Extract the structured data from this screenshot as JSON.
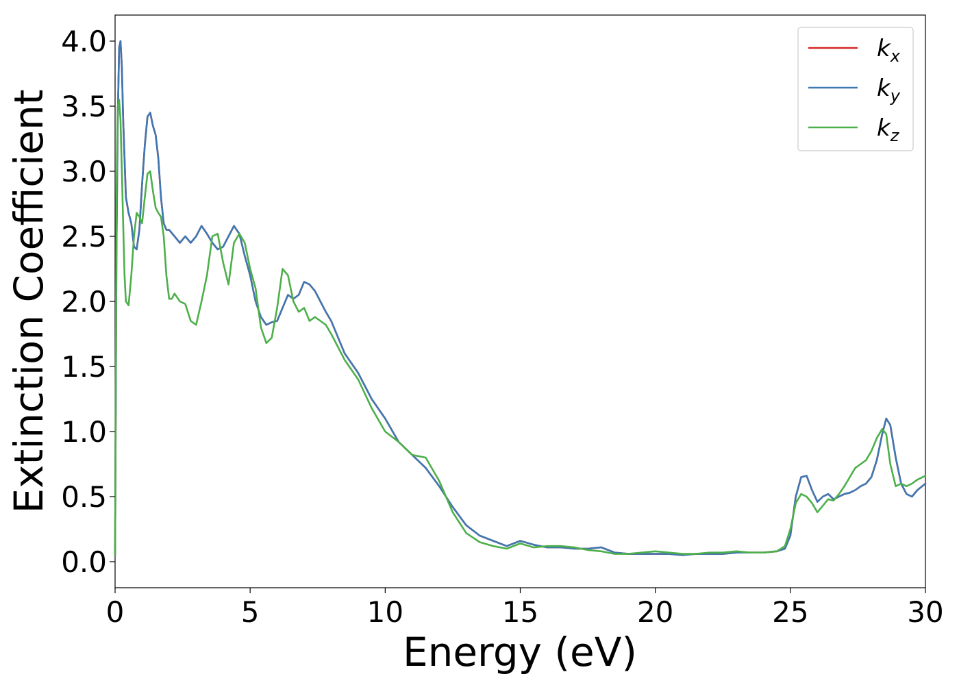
{
  "chart_data": {
    "type": "line",
    "title": "",
    "xlabel": "Energy (eV)",
    "ylabel": "Extinction Coefficient",
    "xlim": [
      0,
      30
    ],
    "ylim": [
      -0.2,
      4.2
    ],
    "xticks": [
      0,
      5,
      10,
      15,
      20,
      25,
      30
    ],
    "xtick_labels": [
      "0",
      "5",
      "10",
      "15",
      "20",
      "25",
      "30"
    ],
    "yticks": [
      0.0,
      0.5,
      1.0,
      1.5,
      2.0,
      2.5,
      3.0,
      3.5,
      4.0
    ],
    "ytick_labels": [
      "0.0",
      "0.5",
      "1.0",
      "1.5",
      "2.0",
      "2.5",
      "3.0",
      "3.5",
      "4.0"
    ],
    "grid": false,
    "legend_position": "top-right",
    "series": [
      {
        "name": "k",
        "subscript": "x",
        "color": "#d62728",
        "x": [
          0,
          0.05,
          0.1,
          0.15,
          0.2,
          0.25,
          0.3,
          0.4,
          0.5,
          0.6,
          0.7,
          0.8,
          0.9,
          1.0,
          1.1,
          1.2,
          1.3,
          1.4,
          1.5,
          1.6,
          1.7,
          1.8,
          1.9,
          2.0,
          2.2,
          2.4,
          2.6,
          2.8,
          3.0,
          3.2,
          3.4,
          3.6,
          3.8,
          4.0,
          4.2,
          4.4,
          4.6,
          4.8,
          5.0,
          5.2,
          5.4,
          5.6,
          5.8,
          6.0,
          6.2,
          6.4,
          6.6,
          6.8,
          7.0,
          7.2,
          7.4,
          7.6,
          7.8,
          8.0,
          8.5,
          9.0,
          9.5,
          10.0,
          10.5,
          11.0,
          11.5,
          12.0,
          12.5,
          13.0,
          13.5,
          14.0,
          14.5,
          15.0,
          15.5,
          16.0,
          16.5,
          17.0,
          17.5,
          18.0,
          18.5,
          19.0,
          19.5,
          20.0,
          20.5,
          21.0,
          21.5,
          22.0,
          22.5,
          23.0,
          23.5,
          24.0,
          24.5,
          24.8,
          25.0,
          25.2,
          25.4,
          25.6,
          25.8,
          26.0,
          26.2,
          26.4,
          26.6,
          26.8,
          27.0,
          27.2,
          27.4,
          27.6,
          27.8,
          28.0,
          28.2,
          28.4,
          28.55,
          28.7,
          28.9,
          29.1,
          29.3,
          29.5,
          29.7,
          30.0
        ],
        "y": [
          0.05,
          2.4,
          3.4,
          3.95,
          4.0,
          3.8,
          3.4,
          2.8,
          2.68,
          2.6,
          2.42,
          2.4,
          2.55,
          2.9,
          3.2,
          3.42,
          3.45,
          3.35,
          3.28,
          3.1,
          2.8,
          2.6,
          2.55,
          2.55,
          2.5,
          2.45,
          2.5,
          2.45,
          2.5,
          2.58,
          2.52,
          2.45,
          2.4,
          2.42,
          2.5,
          2.58,
          2.52,
          2.35,
          2.2,
          2.0,
          1.88,
          1.82,
          1.84,
          1.85,
          1.95,
          2.05,
          2.02,
          2.05,
          2.15,
          2.13,
          2.08,
          2.0,
          1.92,
          1.85,
          1.6,
          1.45,
          1.25,
          1.1,
          0.92,
          0.82,
          0.72,
          0.58,
          0.42,
          0.28,
          0.2,
          0.16,
          0.12,
          0.16,
          0.13,
          0.11,
          0.11,
          0.1,
          0.1,
          0.11,
          0.07,
          0.06,
          0.06,
          0.06,
          0.06,
          0.05,
          0.06,
          0.06,
          0.06,
          0.07,
          0.07,
          0.07,
          0.08,
          0.1,
          0.2,
          0.5,
          0.65,
          0.66,
          0.55,
          0.46,
          0.5,
          0.52,
          0.48,
          0.5,
          0.52,
          0.53,
          0.55,
          0.58,
          0.6,
          0.65,
          0.78,
          0.98,
          1.1,
          1.05,
          0.8,
          0.6,
          0.52,
          0.5,
          0.55,
          0.6
        ],
        "visible_behind": true
      },
      {
        "name": "k",
        "subscript": "y",
        "color": "#3f78b2",
        "x": [
          0,
          0.05,
          0.1,
          0.15,
          0.2,
          0.25,
          0.3,
          0.4,
          0.5,
          0.6,
          0.7,
          0.8,
          0.9,
          1.0,
          1.1,
          1.2,
          1.3,
          1.4,
          1.5,
          1.6,
          1.7,
          1.8,
          1.9,
          2.0,
          2.2,
          2.4,
          2.6,
          2.8,
          3.0,
          3.2,
          3.4,
          3.6,
          3.8,
          4.0,
          4.2,
          4.4,
          4.6,
          4.8,
          5.0,
          5.2,
          5.4,
          5.6,
          5.8,
          6.0,
          6.2,
          6.4,
          6.6,
          6.8,
          7.0,
          7.2,
          7.4,
          7.6,
          7.8,
          8.0,
          8.5,
          9.0,
          9.5,
          10.0,
          10.5,
          11.0,
          11.5,
          12.0,
          12.5,
          13.0,
          13.5,
          14.0,
          14.5,
          15.0,
          15.5,
          16.0,
          16.5,
          17.0,
          17.5,
          18.0,
          18.5,
          19.0,
          19.5,
          20.0,
          20.5,
          21.0,
          21.5,
          22.0,
          22.5,
          23.0,
          23.5,
          24.0,
          24.5,
          24.8,
          25.0,
          25.2,
          25.4,
          25.6,
          25.8,
          26.0,
          26.2,
          26.4,
          26.6,
          26.8,
          27.0,
          27.2,
          27.4,
          27.6,
          27.8,
          28.0,
          28.2,
          28.4,
          28.55,
          28.7,
          28.9,
          29.1,
          29.3,
          29.5,
          29.7,
          30.0
        ],
        "y": [
          0.05,
          2.4,
          3.4,
          3.95,
          4.0,
          3.8,
          3.4,
          2.8,
          2.68,
          2.6,
          2.42,
          2.4,
          2.55,
          2.9,
          3.2,
          3.42,
          3.45,
          3.35,
          3.28,
          3.1,
          2.8,
          2.6,
          2.55,
          2.55,
          2.5,
          2.45,
          2.5,
          2.45,
          2.5,
          2.58,
          2.52,
          2.45,
          2.4,
          2.42,
          2.5,
          2.58,
          2.52,
          2.35,
          2.2,
          2.0,
          1.88,
          1.82,
          1.84,
          1.85,
          1.95,
          2.05,
          2.02,
          2.05,
          2.15,
          2.13,
          2.08,
          2.0,
          1.92,
          1.85,
          1.6,
          1.45,
          1.25,
          1.1,
          0.92,
          0.82,
          0.72,
          0.58,
          0.42,
          0.28,
          0.2,
          0.16,
          0.12,
          0.16,
          0.13,
          0.11,
          0.11,
          0.1,
          0.1,
          0.11,
          0.07,
          0.06,
          0.06,
          0.06,
          0.06,
          0.05,
          0.06,
          0.06,
          0.06,
          0.07,
          0.07,
          0.07,
          0.08,
          0.1,
          0.2,
          0.5,
          0.65,
          0.66,
          0.55,
          0.46,
          0.5,
          0.52,
          0.48,
          0.5,
          0.52,
          0.53,
          0.55,
          0.58,
          0.6,
          0.65,
          0.78,
          0.98,
          1.1,
          1.05,
          0.8,
          0.6,
          0.52,
          0.5,
          0.55,
          0.6
        ]
      },
      {
        "name": "k",
        "subscript": "z",
        "color": "#4daf4a",
        "x": [
          0,
          0.05,
          0.1,
          0.15,
          0.2,
          0.25,
          0.3,
          0.35,
          0.4,
          0.5,
          0.6,
          0.7,
          0.8,
          0.9,
          1.0,
          1.1,
          1.2,
          1.3,
          1.4,
          1.5,
          1.6,
          1.7,
          1.8,
          1.9,
          2.0,
          2.1,
          2.2,
          2.4,
          2.6,
          2.8,
          3.0,
          3.2,
          3.4,
          3.6,
          3.8,
          4.0,
          4.2,
          4.4,
          4.6,
          4.8,
          5.0,
          5.2,
          5.4,
          5.6,
          5.8,
          6.0,
          6.2,
          6.4,
          6.6,
          6.8,
          7.0,
          7.2,
          7.4,
          7.6,
          7.8,
          8.0,
          8.5,
          9.0,
          9.5,
          10.0,
          10.5,
          11.0,
          11.5,
          12.0,
          12.5,
          13.0,
          13.5,
          14.0,
          14.5,
          15.0,
          15.5,
          16.0,
          16.5,
          17.0,
          17.5,
          18.0,
          18.5,
          19.0,
          19.5,
          20.0,
          20.5,
          21.0,
          21.5,
          22.0,
          22.5,
          23.0,
          23.5,
          24.0,
          24.5,
          24.8,
          25.0,
          25.2,
          25.4,
          25.6,
          25.8,
          26.0,
          26.2,
          26.4,
          26.6,
          26.8,
          27.0,
          27.2,
          27.4,
          27.6,
          27.8,
          28.0,
          28.2,
          28.4,
          28.55,
          28.7,
          28.9,
          29.1,
          29.3,
          29.5,
          29.7,
          30.0
        ],
        "y": [
          0.05,
          2.8,
          3.5,
          3.55,
          3.4,
          3.0,
          2.6,
          2.2,
          2.0,
          1.97,
          2.2,
          2.5,
          2.68,
          2.65,
          2.6,
          2.8,
          2.98,
          3.0,
          2.85,
          2.72,
          2.68,
          2.65,
          2.5,
          2.2,
          2.02,
          2.02,
          2.06,
          2.0,
          1.98,
          1.85,
          1.82,
          2.0,
          2.2,
          2.5,
          2.52,
          2.3,
          2.13,
          2.45,
          2.52,
          2.45,
          2.25,
          2.1,
          1.8,
          1.68,
          1.72,
          1.95,
          2.25,
          2.2,
          2.0,
          1.92,
          1.95,
          1.85,
          1.88,
          1.85,
          1.82,
          1.75,
          1.55,
          1.4,
          1.18,
          1.0,
          0.92,
          0.82,
          0.8,
          0.62,
          0.38,
          0.22,
          0.15,
          0.12,
          0.1,
          0.14,
          0.11,
          0.12,
          0.12,
          0.11,
          0.09,
          0.08,
          0.06,
          0.06,
          0.07,
          0.08,
          0.07,
          0.06,
          0.06,
          0.07,
          0.07,
          0.08,
          0.07,
          0.07,
          0.08,
          0.12,
          0.25,
          0.45,
          0.52,
          0.5,
          0.45,
          0.38,
          0.43,
          0.48,
          0.47,
          0.52,
          0.58,
          0.65,
          0.72,
          0.75,
          0.78,
          0.85,
          0.95,
          1.02,
          0.98,
          0.75,
          0.58,
          0.6,
          0.58,
          0.6,
          0.63,
          0.66
        ]
      }
    ]
  }
}
